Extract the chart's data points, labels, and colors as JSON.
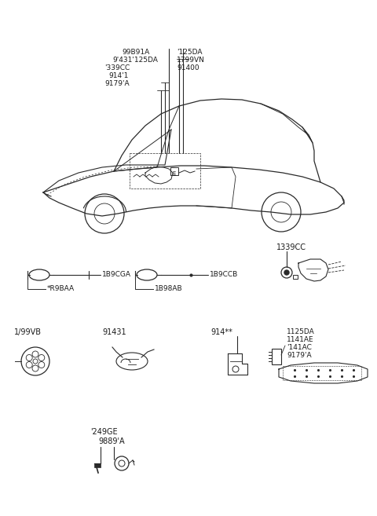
{
  "bg_color": "#ffffff",
  "line_color": "#2a2a2a",
  "text_color": "#1a1a1a",
  "fig_width": 4.8,
  "fig_height": 6.57,
  "dpi": 100,
  "car_labels_left": [
    "99B91A",
    "9'431'125DA",
    "'339CC",
    "914'1",
    "9179'A"
  ],
  "car_labels_right": [
    "'125DA",
    "1799VN",
    "91400"
  ],
  "row1_labels": [
    "*R9BAA",
    "1B9CGA",
    "1B98AB",
    "1B9CCB",
    "1339CC"
  ],
  "row2_labels": [
    "1/99VB",
    "91431",
    "914**",
    "1125DA",
    "1141AE",
    "'141AC",
    "9179'A"
  ],
  "row3_labels": [
    "'249GE",
    "9889'A"
  ]
}
